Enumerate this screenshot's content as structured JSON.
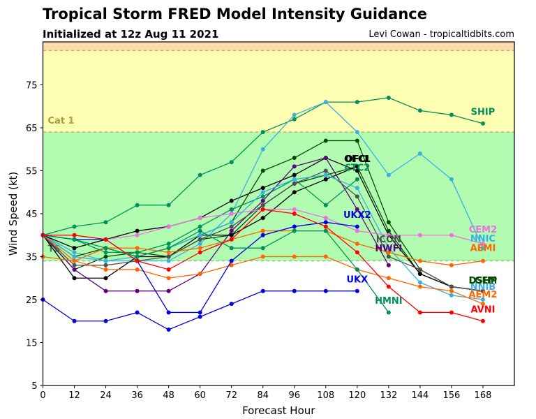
{
  "header": {
    "title": "Tropical Storm FRED Model Intensity Guidance",
    "subtitle": "Initialized at 12z Aug 11 2021",
    "credit": "Levi Cowan - tropicaltidbits.com"
  },
  "chart_data": {
    "type": "line",
    "title": "Tropical Storm FRED Model Intensity Guidance",
    "subtitle": "Initialized at 12z Aug 11 2021",
    "xlabel": "Forecast Hour",
    "ylabel": "Wind Speed (kt)",
    "xlim": [
      0,
      180
    ],
    "ylim": [
      5,
      85
    ],
    "xticks": [
      0,
      12,
      24,
      36,
      48,
      60,
      72,
      84,
      96,
      108,
      120,
      132,
      144,
      156,
      168
    ],
    "yticks": [
      5,
      15,
      25,
      35,
      45,
      55,
      65,
      75
    ],
    "grid": false,
    "bands": [
      {
        "name": "TS",
        "from": 34,
        "to": 64,
        "color": "#b2fcb2",
        "label_color": "#3a8a3a"
      },
      {
        "name": "Cat 1",
        "from": 64,
        "to": 83,
        "color": "#fefeb2",
        "label_color": "#a8a040"
      },
      {
        "name": "Cat 2",
        "from": 83,
        "to": 85,
        "color": "#ffdcae",
        "label_color": "#c08040"
      }
    ],
    "x": [
      0,
      12,
      24,
      36,
      48,
      60,
      72,
      84,
      96,
      108,
      120,
      132,
      144,
      156,
      168
    ],
    "series": [
      {
        "name": "SHIP",
        "color": "#00905a",
        "values": [
          40,
          42,
          43,
          47,
          47,
          54,
          57,
          64,
          67,
          71,
          71,
          72,
          69,
          68,
          66
        ],
        "show_label": true
      },
      {
        "name": "NNIB",
        "color": "#3ab0e0",
        "values": [
          40,
          36,
          34,
          34,
          34,
          38,
          45,
          60,
          68,
          71,
          64,
          54,
          59,
          53,
          37
        ],
        "show_label": true
      },
      {
        "name": "LGEM",
        "color": "#004d00",
        "values": [
          40,
          35,
          37,
          35,
          37,
          40,
          43,
          55,
          58,
          62,
          62,
          43,
          32,
          28,
          27
        ],
        "show_label": true
      },
      {
        "name": "DSHP",
        "color": "#004d00",
        "values": [
          40,
          32,
          35,
          36,
          35,
          39,
          40,
          47,
          52,
          54,
          56,
          41,
          31,
          28,
          27
        ],
        "show_label": true
      },
      {
        "name": "OFCL",
        "color": "#000000",
        "values": [
          40,
          37,
          39,
          41,
          42,
          44,
          48,
          51,
          54,
          58,
          55,
          40,
          31,
          28,
          27
        ],
        "show_label": true
      },
      {
        "name": "OFCI",
        "color": "#000000",
        "values": [
          40,
          30,
          30,
          35,
          35,
          40,
          40,
          44,
          50,
          53,
          56
        ],
        "show_label": true
      },
      {
        "name": "CTC2",
        "color": "#00905a",
        "values": [
          40,
          39,
          36,
          36,
          38,
          42,
          46,
          49,
          53,
          47,
          53
        ],
        "show_label": true
      },
      {
        "name": "HWFI",
        "color": "#600080",
        "values": [
          40,
          32,
          27,
          27,
          27,
          31,
          41,
          48,
          56,
          58,
          46,
          33
        ],
        "show_label": true
      },
      {
        "name": "ICON",
        "color": "#505050",
        "values": [
          40,
          33,
          33,
          34,
          35,
          39,
          42,
          47,
          52,
          55,
          49,
          35,
          32,
          28,
          27
        ],
        "show_label": true
      },
      {
        "name": "CEM2",
        "color": "#f070e0",
        "values": [
          40,
          40,
          39,
          40,
          42,
          44,
          45,
          46,
          46,
          44,
          41,
          40,
          40,
          40,
          38
        ],
        "show_label": true
      },
      {
        "name": "NNIC",
        "color": "#3ab0e0",
        "values": [
          40,
          35,
          34,
          35,
          37,
          40,
          43,
          50,
          53,
          54,
          51,
          37,
          29,
          26,
          25
        ],
        "show_label": true
      },
      {
        "name": "AEMI",
        "color": "#ff6600",
        "values": [
          40,
          34,
          37,
          37,
          36,
          37,
          39,
          41,
          41,
          41,
          38,
          36,
          34,
          33,
          34
        ],
        "show_label": true
      },
      {
        "name": "AEM2",
        "color": "#ff6600",
        "values": [
          35,
          34,
          32,
          32,
          30,
          31,
          33,
          35,
          35,
          35,
          32,
          30,
          28,
          27,
          24
        ],
        "show_label": true
      },
      {
        "name": "UKX2",
        "color": "#0000e0",
        "values": [
          40,
          39,
          39,
          34,
          22,
          22,
          34,
          40,
          42,
          43,
          42
        ],
        "show_label": true
      },
      {
        "name": "UKX",
        "color": "#0000e0",
        "values": [
          25,
          20,
          20,
          22,
          18,
          21,
          24,
          27,
          27,
          27,
          27
        ],
        "show_label": true
      },
      {
        "name": "HMNI",
        "color": "#00905a",
        "values": [
          40,
          39,
          37,
          35,
          37,
          41,
          37,
          37,
          41,
          41,
          32,
          22
        ],
        "show_label": true
      },
      {
        "name": "AVNI",
        "color": "#ff0000",
        "values": [
          40,
          40,
          39,
          34,
          32,
          36,
          39,
          46,
          45,
          42,
          36,
          28,
          22,
          22,
          20
        ],
        "show_label": true
      }
    ]
  }
}
